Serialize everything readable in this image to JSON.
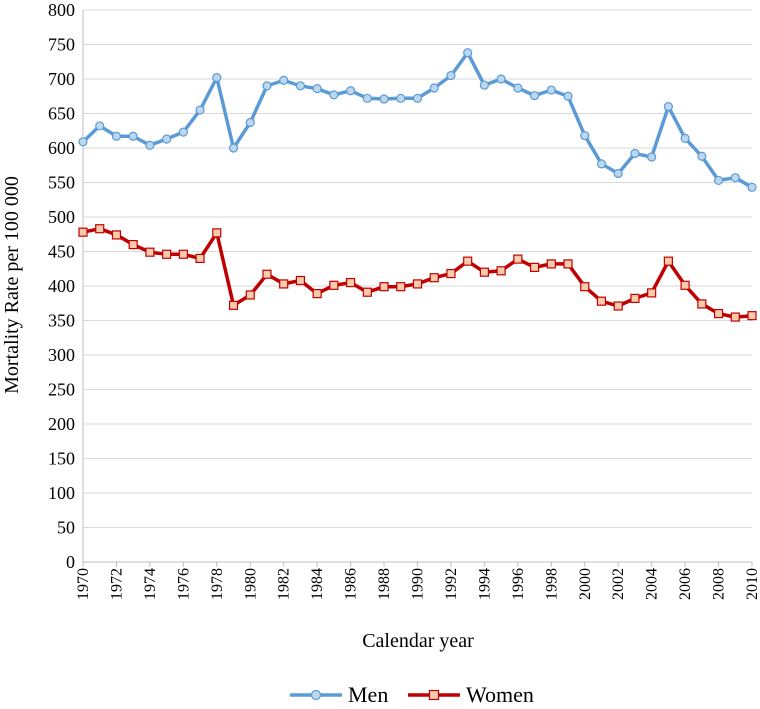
{
  "chart_data": {
    "type": "line",
    "title": "",
    "xlabel": "Calendar year",
    "ylabel": "Mortality Rate per 100 000",
    "xlim": [
      1970,
      2010
    ],
    "ylim": [
      0,
      800
    ],
    "x_ticks": [
      "1970",
      "1972",
      "1974",
      "1976",
      "1978",
      "1980",
      "1982",
      "1984",
      "1986",
      "1988",
      "1990",
      "1992",
      "1994",
      "1996",
      "1998",
      "2000",
      "2002",
      "2004",
      "2006",
      "2008",
      "2010"
    ],
    "y_ticks": [
      "0",
      "50",
      "100",
      "150",
      "200",
      "250",
      "300",
      "350",
      "400",
      "450",
      "500",
      "550",
      "600",
      "650",
      "700",
      "750",
      "800"
    ],
    "grid": "horizontal",
    "legend_position": "bottom",
    "x": [
      1970,
      1971,
      1972,
      1973,
      1974,
      1975,
      1976,
      1977,
      1978,
      1979,
      1980,
      1981,
      1982,
      1983,
      1984,
      1985,
      1986,
      1987,
      1988,
      1989,
      1990,
      1991,
      1992,
      1993,
      1994,
      1995,
      1996,
      1997,
      1998,
      1999,
      2000,
      2001,
      2002,
      2003,
      2004,
      2005,
      2006,
      2007,
      2008,
      2009,
      2010
    ],
    "series": [
      {
        "name": "Men",
        "color": "#5b9bd5",
        "marker_fill": "#bdd7ee",
        "marker": "circle",
        "values": [
          609,
          632,
          617,
          617,
          604,
          613,
          623,
          655,
          702,
          600,
          637,
          690,
          698,
          690,
          686,
          677,
          683,
          672,
          671,
          672,
          672,
          687,
          705,
          738,
          691,
          700,
          687,
          676,
          684,
          675,
          618,
          577,
          563,
          592,
          587,
          660,
          614,
          588,
          553,
          557,
          543
        ]
      },
      {
        "name": "Women",
        "color": "#c00000",
        "marker_fill": "#f8cbad",
        "marker": "square",
        "values": [
          478,
          483,
          474,
          460,
          449,
          446,
          446,
          440,
          477,
          372,
          387,
          417,
          403,
          408,
          389,
          401,
          405,
          391,
          399,
          399,
          403,
          412,
          418,
          436,
          420,
          422,
          439,
          427,
          432,
          432,
          399,
          378,
          371,
          382,
          390,
          436,
          401,
          374,
          360,
          355,
          357
        ]
      }
    ]
  }
}
